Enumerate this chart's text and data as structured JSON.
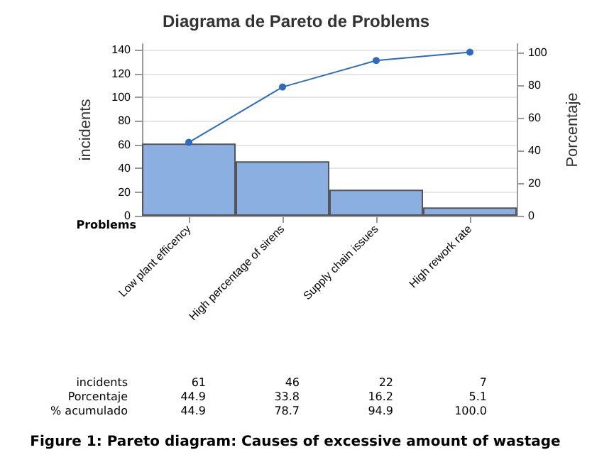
{
  "chart_data": {
    "type": "bar",
    "title": "Diagrama de Pareto de Problems",
    "xlabel": "Problems",
    "ylabel": "incidents",
    "y2label": "Porcentaje",
    "categories": [
      "Low plant efficency",
      "High percentage of sirens",
      "Supply chain issues",
      "High rework rate"
    ],
    "series": [
      {
        "color": "#8aafe0",
        "values": [
          61,
          46,
          22,
          7
        ],
        "value_labels": [
          "61",
          "46",
          "22",
          "7"
        ]
      },
      {
        "type": "line",
        "axis": "y2",
        "color": "#2b6cc0",
        "marker": "circle",
        "values": [
          44.9,
          78.7,
          94.9,
          100
        ],
        "value_labels": [
          "44.9",
          "78.7",
          "94.9",
          "100.0"
        ]
      }
    ],
    "ylim": [
      0,
      145
    ],
    "yticks": [
      0,
      20,
      40,
      60,
      80,
      100,
      120,
      140
    ],
    "y2lim": [
      0,
      105
    ],
    "y2ticks": [
      0,
      20,
      40,
      60,
      80,
      100
    ],
    "grid": "y",
    "annotations": [
      "incidents",
      "Porcentaje",
      "44.9",
      "33.8",
      "16.2",
      "5.1",
      "% acumulado",
      "Figure 1: Pareto diagram: Causes of excessive amount of wastage"
    ]
  }
}
